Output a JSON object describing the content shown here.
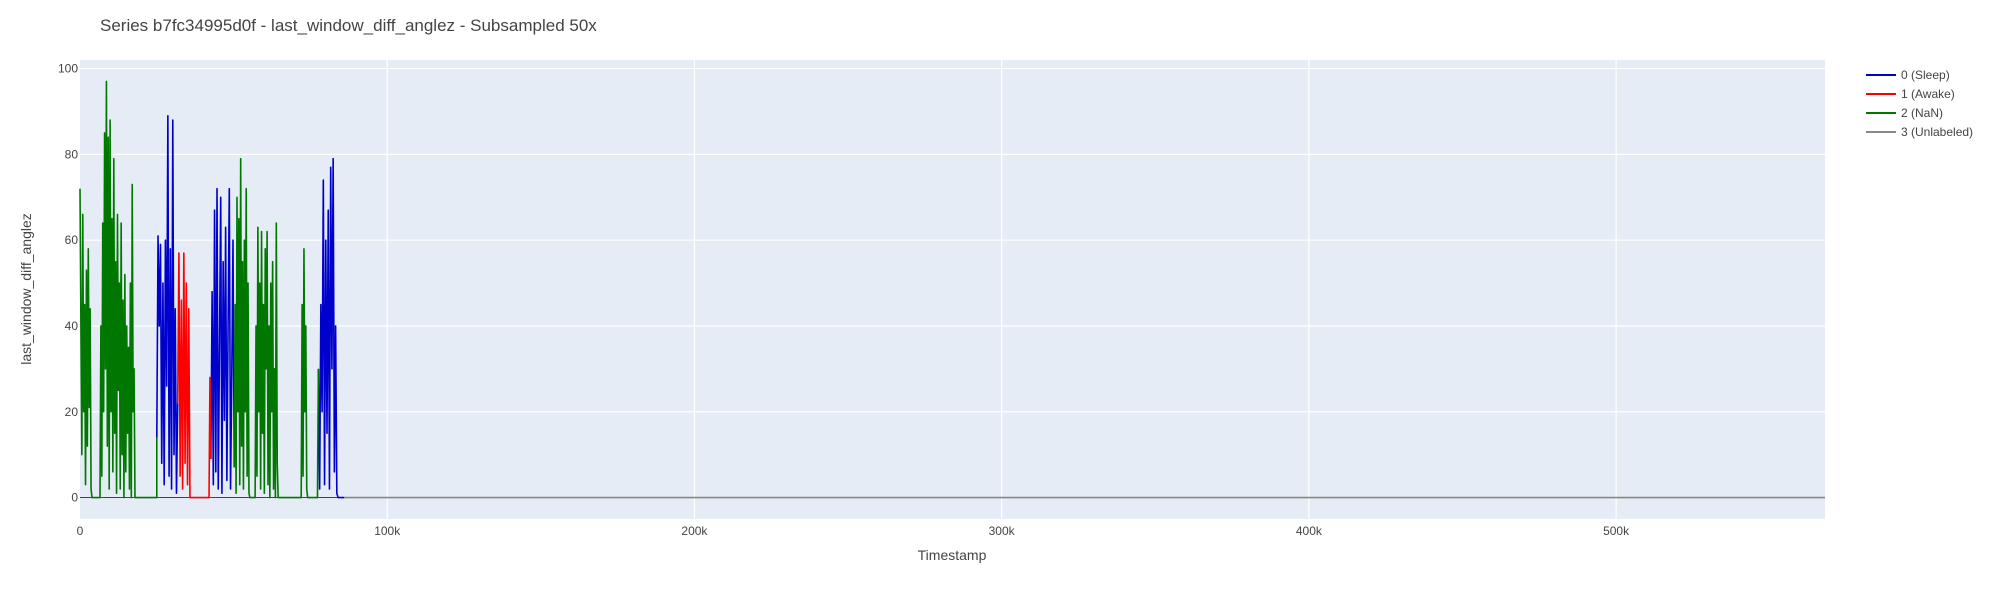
{
  "chart_data": {
    "type": "line",
    "title": "Series b7fc34995d0f - last_window_diff_anglez - Subsampled 50x",
    "xlabel": "Timestamp",
    "ylabel": "last_window_diff_anglez",
    "xlim": [
      0,
      568000
    ],
    "ylim": [
      -5,
      102
    ],
    "x_ticks": [
      0,
      100000,
      200000,
      300000,
      400000,
      500000
    ],
    "x_tick_labels": [
      "0",
      "100k",
      "200k",
      "300k",
      "400k",
      "500k"
    ],
    "y_ticks": [
      0,
      20,
      40,
      60,
      80,
      100
    ],
    "y_tick_labels": [
      "0",
      "20",
      "40",
      "60",
      "80",
      "100"
    ],
    "grid": true,
    "legend_position": "top-right",
    "series": [
      {
        "name": "0 (Sleep)",
        "color": "#0000cc",
        "segments": [
          [
            [
              25000,
              14
            ],
            [
              25400,
              61
            ],
            [
              25800,
              40
            ],
            [
              26200,
              59
            ],
            [
              26600,
              8
            ],
            [
              27000,
              50
            ],
            [
              27400,
              3
            ],
            [
              27800,
              60
            ],
            [
              28200,
              26
            ],
            [
              28600,
              89
            ],
            [
              29000,
              5
            ],
            [
              29400,
              58
            ],
            [
              29800,
              2
            ],
            [
              30200,
              88
            ],
            [
              30600,
              10
            ],
            [
              31000,
              44
            ],
            [
              31400,
              1
            ],
            [
              31800,
              22
            ]
          ],
          [
            [
              42600,
              9
            ],
            [
              43000,
              48
            ],
            [
              43400,
              3
            ],
            [
              43800,
              67
            ],
            [
              44200,
              6
            ],
            [
              44600,
              72
            ],
            [
              45000,
              2
            ],
            [
              45400,
              35
            ],
            [
              45800,
              70
            ],
            [
              46200,
              1
            ],
            [
              46600,
              55
            ],
            [
              47000,
              18
            ],
            [
              47400,
              63
            ],
            [
              47800,
              4
            ],
            [
              48200,
              40
            ],
            [
              48600,
              72
            ],
            [
              49000,
              2
            ],
            [
              49400,
              28
            ],
            [
              49800,
              60
            ],
            [
              50200,
              7
            ]
          ],
          [
            [
              77600,
              30
            ],
            [
              78000,
              2
            ],
            [
              78400,
              45
            ],
            [
              78800,
              20
            ],
            [
              79200,
              74
            ],
            [
              79600,
              3
            ],
            [
              80000,
              60
            ],
            [
              80400,
              15
            ],
            [
              80800,
              67
            ],
            [
              81200,
              2
            ],
            [
              81600,
              77
            ],
            [
              82000,
              30
            ],
            [
              82400,
              79
            ],
            [
              82800,
              6
            ],
            [
              83200,
              40
            ],
            [
              83600,
              1
            ],
            [
              84000,
              0
            ],
            [
              86000,
              0
            ]
          ]
        ]
      },
      {
        "name": "1 (Awake)",
        "color": "#ff0000",
        "segments": [
          [
            [
              31800,
              22
            ],
            [
              32200,
              57
            ],
            [
              32600,
              5
            ],
            [
              33000,
              46
            ],
            [
              33400,
              2
            ],
            [
              33800,
              57
            ],
            [
              34200,
              8
            ],
            [
              34600,
              50
            ],
            [
              35000,
              3
            ],
            [
              35400,
              44
            ],
            [
              35800,
              0
            ],
            [
              36200,
              0
            ],
            [
              42000,
              0
            ],
            [
              42300,
              28
            ],
            [
              42600,
              9
            ]
          ]
        ]
      },
      {
        "name": "2 (NaN)",
        "color": "#007700",
        "segments": [
          [
            [
              0,
              72
            ],
            [
              300,
              40
            ],
            [
              600,
              10
            ],
            [
              900,
              66
            ],
            [
              1200,
              20
            ],
            [
              1500,
              45
            ],
            [
              1800,
              3
            ],
            [
              2100,
              53
            ],
            [
              2400,
              12
            ],
            [
              2700,
              58
            ],
            [
              3000,
              21
            ],
            [
              3300,
              44
            ],
            [
              3600,
              2
            ],
            [
              3900,
              0
            ],
            [
              6500,
              0
            ],
            [
              6800,
              40
            ],
            [
              7100,
              5
            ],
            [
              7400,
              64
            ],
            [
              7700,
              20
            ],
            [
              8000,
              85
            ],
            [
              8300,
              30
            ],
            [
              8600,
              97
            ],
            [
              8900,
              12
            ],
            [
              9200,
              84
            ],
            [
              9500,
              2
            ],
            [
              9800,
              88
            ],
            [
              10100,
              20
            ],
            [
              10400,
              65
            ],
            [
              10700,
              6
            ],
            [
              11000,
              79
            ],
            [
              11300,
              15
            ],
            [
              11600,
              55
            ],
            [
              11900,
              1
            ],
            [
              12200,
              66
            ],
            [
              12500,
              25
            ],
            [
              12800,
              50
            ],
            [
              13100,
              2
            ],
            [
              13400,
              64
            ],
            [
              13700,
              10
            ],
            [
              14000,
              46
            ],
            [
              14300,
              0
            ],
            [
              14600,
              52
            ],
            [
              14900,
              6
            ],
            [
              15200,
              40
            ],
            [
              15500,
              15
            ],
            [
              15800,
              35
            ],
            [
              16100,
              2
            ],
            [
              16400,
              50
            ],
            [
              16700,
              0
            ],
            [
              17000,
              73
            ],
            [
              17300,
              20
            ],
            [
              17600,
              30
            ],
            [
              17900,
              0
            ],
            [
              18200,
              0
            ],
            [
              25000,
              0
            ],
            [
              25000,
              14
            ]
          ],
          [
            [
              50200,
              7
            ],
            [
              50500,
              45
            ],
            [
              50800,
              1
            ],
            [
              51100,
              70
            ],
            [
              51400,
              20
            ],
            [
              51700,
              65
            ],
            [
              52000,
              3
            ],
            [
              52300,
              79
            ],
            [
              52600,
              12
            ],
            [
              52900,
              55
            ],
            [
              53200,
              2
            ],
            [
              53500,
              60
            ],
            [
              53800,
              20
            ],
            [
              54100,
              72
            ],
            [
              54400,
              5
            ],
            [
              54700,
              50
            ],
            [
              55000,
              1
            ],
            [
              55300,
              0
            ],
            [
              57000,
              0
            ],
            [
              57300,
              40
            ],
            [
              57600,
              5
            ],
            [
              57900,
              63
            ],
            [
              58200,
              20
            ],
            [
              58500,
              50
            ],
            [
              58800,
              2
            ],
            [
              59100,
              62
            ],
            [
              59400,
              15
            ],
            [
              59700,
              45
            ],
            [
              60000,
              1
            ],
            [
              60300,
              58
            ],
            [
              60600,
              30
            ],
            [
              60900,
              62
            ],
            [
              61200,
              3
            ],
            [
              61500,
              40
            ],
            [
              61800,
              0
            ],
            [
              62100,
              50
            ],
            [
              62400,
              20
            ],
            [
              62700,
              55
            ],
            [
              63000,
              2
            ],
            [
              63300,
              30
            ],
            [
              63600,
              0
            ],
            [
              63900,
              64
            ],
            [
              64200,
              8
            ],
            [
              64500,
              0
            ],
            [
              72000,
              0
            ],
            [
              72300,
              45
            ],
            [
              72600,
              5
            ],
            [
              72900,
              58
            ],
            [
              73200,
              20
            ],
            [
              73500,
              40
            ],
            [
              73800,
              2
            ],
            [
              74100,
              0
            ],
            [
              77300,
              0
            ],
            [
              77600,
              30
            ]
          ]
        ]
      },
      {
        "name": "3 (Unlabeled)",
        "color": "#888888",
        "segments": [
          [
            [
              86000,
              0
            ],
            [
              568000,
              0
            ]
          ]
        ]
      }
    ]
  }
}
